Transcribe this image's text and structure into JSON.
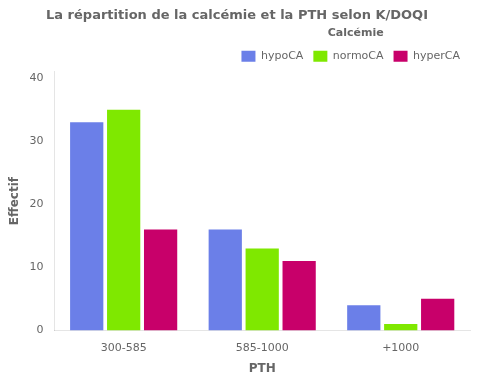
{
  "chart_data": {
    "type": "bar",
    "title": "La répartition de la calcémie et la PTH selon K/DOQI",
    "xlabel": "PTH",
    "ylabel": "Effectif",
    "categories": [
      "300-585",
      "585-1000",
      "+1000"
    ],
    "series": [
      {
        "name": "hypoCA",
        "color": "#6B7FE8",
        "values": [
          33,
          16,
          4
        ]
      },
      {
        "name": "normoCA",
        "color": "#7FE800",
        "values": [
          35,
          13,
          1
        ]
      },
      {
        "name": "hyperCA",
        "color": "#C8006A",
        "values": [
          16,
          11,
          5
        ]
      }
    ],
    "legend_title": "Calcémie",
    "legend": "upper right",
    "grid": false,
    "ylim": [
      0,
      41
    ],
    "yticks": [
      0,
      10,
      20,
      30,
      40
    ]
  }
}
